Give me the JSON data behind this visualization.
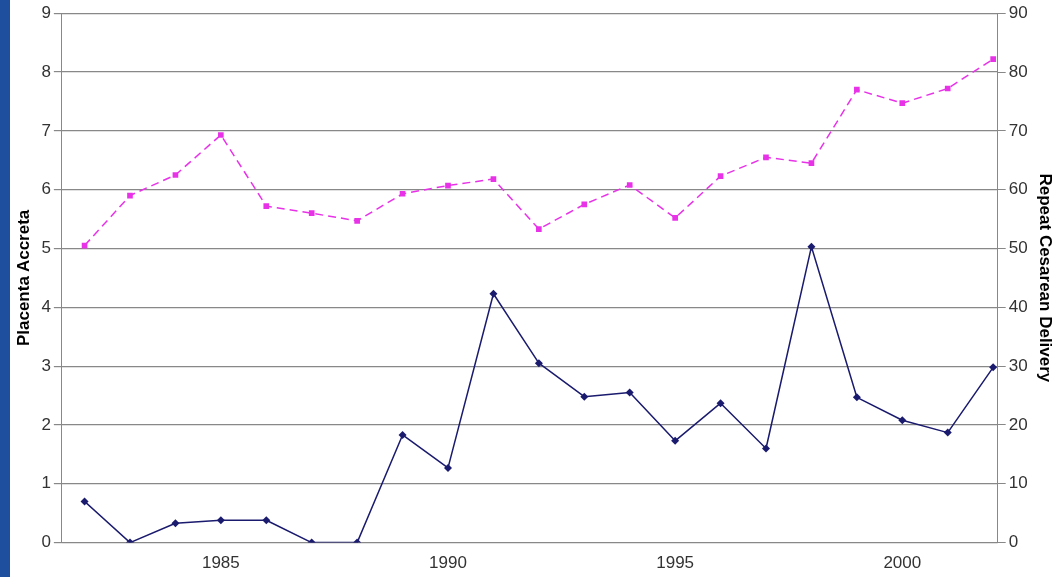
{
  "chart_data": {
    "type": "line",
    "ylabel": "Placenta Accreta",
    "y2label": "Repeat Cesarean Delivery",
    "x": [
      1982,
      1983,
      1984,
      1985,
      1986,
      1987,
      1988,
      1989,
      1990,
      1991,
      1992,
      1993,
      1994,
      1995,
      1996,
      1997,
      1998,
      1999,
      2000,
      2001,
      2002
    ],
    "xlim": [
      1981.5,
      2002.1
    ],
    "xticks": [
      1985,
      1990,
      1995,
      2000
    ],
    "ylim": [
      0,
      9
    ],
    "yticks": [
      0,
      1,
      2,
      3,
      4,
      5,
      6,
      7,
      8,
      9
    ],
    "y2lim": [
      0,
      90
    ],
    "y2ticks": [
      0,
      10,
      20,
      30,
      40,
      50,
      60,
      70,
      80,
      90
    ],
    "grid": "y",
    "legend": false,
    "series": [
      {
        "color": "#1a1a6e",
        "marker": "diamond",
        "line_style": "solid",
        "values": [
          0.7,
          0,
          0.33,
          0.38,
          0.38,
          0,
          0,
          1.83,
          1.27,
          4.23,
          3.05,
          2.48,
          2.55,
          1.73,
          2.37,
          1.6,
          5.03,
          2.47,
          2.08,
          1.87,
          2.98
        ]
      },
      {
        "color": "#e832e8",
        "marker": "square",
        "line_style": "dashed",
        "axis": "y2",
        "values": [
          50.5,
          59,
          62.5,
          69.3,
          57.2,
          56,
          54.7,
          59.3,
          60.7,
          61.8,
          53.3,
          57.5,
          60.8,
          55.2,
          62.3,
          65.5,
          64.5,
          77,
          74.7,
          77.2,
          82.2
        ]
      }
    ]
  }
}
